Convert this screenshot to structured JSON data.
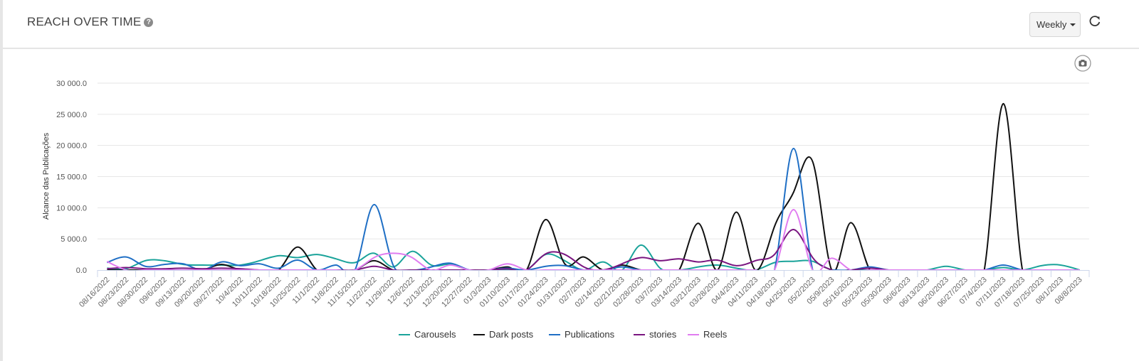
{
  "header": {
    "title": "REACH OVER TIME",
    "help_icon": "question-circle-icon",
    "period_select": "Weekly",
    "refresh_icon": "refresh-icon",
    "export_icon": "camera-icon"
  },
  "chart_data": {
    "type": "line",
    "smoothing": "spline",
    "title": "REACH OVER TIME",
    "xlabel": "",
    "ylabel": "Alcance das Publicações",
    "ylim": [
      0,
      30000
    ],
    "yticks": [
      0,
      5000,
      10000,
      15000,
      20000,
      25000,
      30000
    ],
    "ytick_labels": [
      "0.0",
      "5 000.0",
      "10 000.0",
      "15 000.0",
      "20 000.0",
      "25 000.0",
      "30 000.0"
    ],
    "grid": true,
    "legend": "bottom-center",
    "categories": [
      "08/16/2022",
      "08/23/2022",
      "08/30/2022",
      "09/6/2022",
      "09/13/2022",
      "09/20/2022",
      "09/27/2022",
      "10/4/2022",
      "10/11/2022",
      "10/18/2022",
      "10/25/2022",
      "11/1/2022",
      "11/8/2022",
      "11/15/2022",
      "11/22/2022",
      "11/29/2022",
      "12/6/2022",
      "12/13/2022",
      "12/20/2022",
      "12/27/2022",
      "01/3/2023",
      "01/10/2023",
      "01/17/2023",
      "01/24/2023",
      "01/31/2023",
      "02/7/2023",
      "02/14/2023",
      "02/21/2023",
      "02/28/2023",
      "03/7/2023",
      "03/14/2023",
      "03/21/2023",
      "03/28/2023",
      "04/4/2023",
      "04/11/2023",
      "04/18/2023",
      "04/25/2023",
      "05/2/2023",
      "05/9/2023",
      "05/16/2023",
      "05/23/2023",
      "05/30/2023",
      "06/6/2023",
      "06/13/2023",
      "06/20/2023",
      "06/27/2023",
      "07/4/2023",
      "07/11/2023",
      "07/18/2023",
      "07/25/2023",
      "08/1/2023",
      "08/8/2023"
    ],
    "series": [
      {
        "name": "Carousels",
        "color": "#1aa39a",
        "values": [
          300,
          200,
          1500,
          1500,
          900,
          800,
          800,
          800,
          1500,
          2300,
          2000,
          2500,
          1800,
          1200,
          2700,
          500,
          3000,
          800,
          900,
          0,
          0,
          0,
          0,
          2500,
          1500,
          0,
          1300,
          0,
          4000,
          300,
          0,
          500,
          800,
          300,
          0,
          1200,
          1400,
          1400,
          0,
          0,
          0,
          0,
          0,
          0,
          600,
          0,
          0,
          400,
          0,
          700,
          800,
          0
        ]
      },
      {
        "name": "Dark posts",
        "color": "#111111",
        "values": [
          0,
          0,
          0,
          0,
          0,
          0,
          900,
          0,
          0,
          0,
          3700,
          0,
          0,
          0,
          1500,
          0,
          0,
          0,
          0,
          0,
          0,
          500,
          0,
          8100,
          1000,
          2100,
          0,
          800,
          0,
          0,
          0,
          7500,
          0,
          9300,
          0,
          7000,
          12500,
          17400,
          0,
          7600,
          0,
          0,
          0,
          0,
          0,
          0,
          0,
          26700,
          0,
          0,
          0,
          0
        ]
      },
      {
        "name": "Publications",
        "color": "#1f6fc5",
        "values": [
          1200,
          2100,
          600,
          900,
          1000,
          0,
          1300,
          700,
          1000,
          300,
          1600,
          0,
          800,
          0,
          10500,
          800,
          0,
          500,
          1100,
          0,
          0,
          300,
          0,
          600,
          700,
          0,
          0,
          500,
          0,
          0,
          0,
          0,
          0,
          0,
          0,
          0,
          19500,
          0,
          0,
          0,
          500,
          0,
          0,
          0,
          0,
          0,
          0,
          800,
          0,
          0,
          0,
          0
        ]
      },
      {
        "name": "stories",
        "color": "#7a1580",
        "values": [
          200,
          400,
          200,
          200,
          300,
          200,
          300,
          200,
          0,
          0,
          0,
          0,
          0,
          0,
          600,
          0,
          0,
          0,
          0,
          0,
          0,
          200,
          0,
          2600,
          2500,
          500,
          0,
          1000,
          2000,
          1500,
          1800,
          1300,
          1600,
          700,
          1500,
          2500,
          6500,
          2000,
          0,
          0,
          300,
          0,
          0,
          0,
          0,
          0,
          0,
          0,
          0,
          0,
          0,
          0
        ]
      },
      {
        "name": "Reels",
        "color": "#e07cf0",
        "values": [
          1400,
          0,
          0,
          0,
          0,
          0,
          0,
          0,
          0,
          0,
          0,
          0,
          0,
          0,
          2000,
          2700,
          2000,
          0,
          800,
          0,
          0,
          1000,
          0,
          0,
          0,
          0,
          0,
          0,
          0,
          0,
          0,
          0,
          0,
          0,
          0,
          0,
          9700,
          0,
          1900,
          0,
          0,
          0,
          0,
          0,
          0,
          0,
          0,
          0,
          0,
          0,
          0,
          0
        ]
      }
    ]
  }
}
